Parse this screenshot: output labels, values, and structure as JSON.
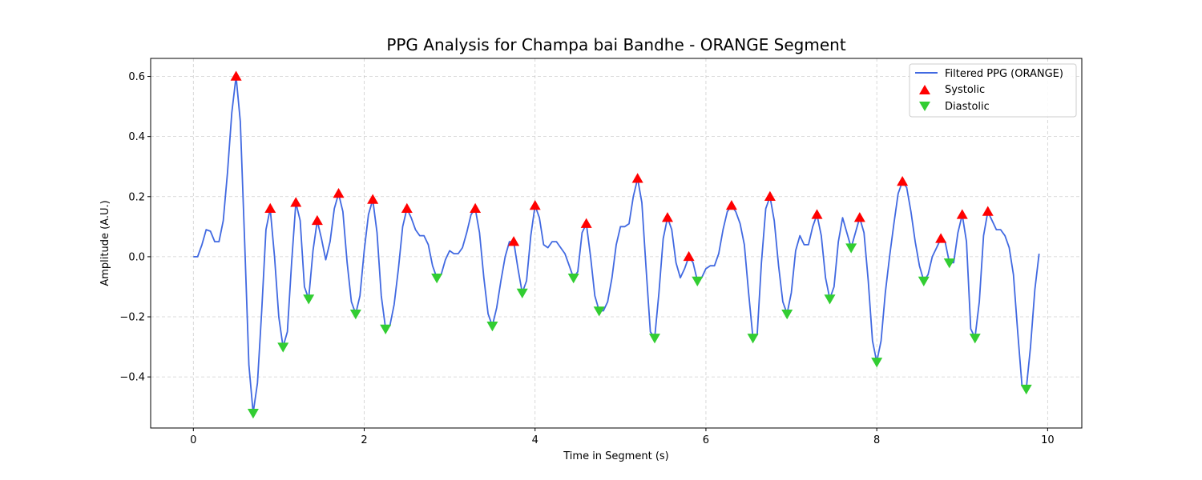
{
  "chart_data": {
    "type": "line",
    "title": "PPG Analysis for Champa bai Bandhe - ORANGE Segment",
    "xlabel": "Time in Segment (s)",
    "ylabel": "Amplitude (A.U.)",
    "xlim": [
      -0.5,
      10.4
    ],
    "ylim": [
      -0.57,
      0.66
    ],
    "x_ticks": [
      0,
      2,
      4,
      6,
      8,
      10
    ],
    "x_tick_labels": [
      "0",
      "2",
      "4",
      "6",
      "8",
      "10"
    ],
    "y_ticks": [
      -0.4,
      -0.2,
      0.0,
      0.2,
      0.4,
      0.6
    ],
    "y_tick_labels": [
      "−0.4",
      "−0.2",
      "0.0",
      "0.2",
      "0.4",
      "0.6"
    ],
    "grid": true,
    "legend_position": "top-right",
    "colors": {
      "line": "#4169e1",
      "systolic": "#ff0000",
      "diastolic": "#32cd32"
    },
    "series": [
      {
        "name": "Filtered PPG (ORANGE)",
        "style": "line",
        "points": [
          [
            0.0,
            0.0
          ],
          [
            0.05,
            0.0
          ],
          [
            0.1,
            0.04
          ],
          [
            0.15,
            0.09
          ],
          [
            0.2,
            0.085
          ],
          [
            0.25,
            0.05
          ],
          [
            0.3,
            0.05
          ],
          [
            0.35,
            0.12
          ],
          [
            0.4,
            0.28
          ],
          [
            0.45,
            0.48
          ],
          [
            0.5,
            0.6
          ],
          [
            0.55,
            0.45
          ],
          [
            0.6,
            0.05
          ],
          [
            0.65,
            -0.36
          ],
          [
            0.7,
            -0.52
          ],
          [
            0.75,
            -0.42
          ],
          [
            0.8,
            -0.18
          ],
          [
            0.85,
            0.09
          ],
          [
            0.9,
            0.16
          ],
          [
            0.95,
            0.0
          ],
          [
            1.0,
            -0.2
          ],
          [
            1.05,
            -0.3
          ],
          [
            1.1,
            -0.25
          ],
          [
            1.15,
            -0.02
          ],
          [
            1.2,
            0.18
          ],
          [
            1.25,
            0.12
          ],
          [
            1.3,
            -0.1
          ],
          [
            1.35,
            -0.14
          ],
          [
            1.4,
            0.02
          ],
          [
            1.45,
            0.12
          ],
          [
            1.5,
            0.06
          ],
          [
            1.55,
            -0.01
          ],
          [
            1.6,
            0.05
          ],
          [
            1.65,
            0.16
          ],
          [
            1.7,
            0.21
          ],
          [
            1.75,
            0.15
          ],
          [
            1.8,
            -0.02
          ],
          [
            1.85,
            -0.15
          ],
          [
            1.9,
            -0.19
          ],
          [
            1.95,
            -0.13
          ],
          [
            2.0,
            0.02
          ],
          [
            2.05,
            0.14
          ],
          [
            2.1,
            0.19
          ],
          [
            2.15,
            0.08
          ],
          [
            2.2,
            -0.13
          ],
          [
            2.25,
            -0.24
          ],
          [
            2.3,
            -0.23
          ],
          [
            2.35,
            -0.16
          ],
          [
            2.4,
            -0.04
          ],
          [
            2.45,
            0.1
          ],
          [
            2.5,
            0.16
          ],
          [
            2.55,
            0.13
          ],
          [
            2.6,
            0.09
          ],
          [
            2.65,
            0.07
          ],
          [
            2.7,
            0.07
          ],
          [
            2.75,
            0.04
          ],
          [
            2.8,
            -0.03
          ],
          [
            2.85,
            -0.07
          ],
          [
            2.9,
            -0.06
          ],
          [
            2.95,
            -0.01
          ],
          [
            3.0,
            0.02
          ],
          [
            3.05,
            0.01
          ],
          [
            3.1,
            0.01
          ],
          [
            3.15,
            0.03
          ],
          [
            3.2,
            0.08
          ],
          [
            3.25,
            0.14
          ],
          [
            3.3,
            0.16
          ],
          [
            3.35,
            0.08
          ],
          [
            3.4,
            -0.07
          ],
          [
            3.45,
            -0.19
          ],
          [
            3.5,
            -0.23
          ],
          [
            3.55,
            -0.17
          ],
          [
            3.6,
            -0.08
          ],
          [
            3.65,
            0.0
          ],
          [
            3.7,
            0.05
          ],
          [
            3.75,
            0.05
          ],
          [
            3.8,
            -0.04
          ],
          [
            3.85,
            -0.12
          ],
          [
            3.9,
            -0.08
          ],
          [
            3.95,
            0.07
          ],
          [
            4.0,
            0.17
          ],
          [
            4.05,
            0.13
          ],
          [
            4.1,
            0.04
          ],
          [
            4.15,
            0.03
          ],
          [
            4.2,
            0.05
          ],
          [
            4.25,
            0.05
          ],
          [
            4.3,
            0.03
          ],
          [
            4.35,
            0.01
          ],
          [
            4.4,
            -0.03
          ],
          [
            4.45,
            -0.07
          ],
          [
            4.5,
            -0.05
          ],
          [
            4.55,
            0.08
          ],
          [
            4.6,
            0.11
          ],
          [
            4.65,
            0.0
          ],
          [
            4.7,
            -0.13
          ],
          [
            4.75,
            -0.18
          ],
          [
            4.8,
            -0.18
          ],
          [
            4.85,
            -0.15
          ],
          [
            4.9,
            -0.07
          ],
          [
            4.95,
            0.04
          ],
          [
            5.0,
            0.1
          ],
          [
            5.05,
            0.1
          ],
          [
            5.1,
            0.11
          ],
          [
            5.15,
            0.2
          ],
          [
            5.2,
            0.26
          ],
          [
            5.25,
            0.18
          ],
          [
            5.3,
            -0.04
          ],
          [
            5.35,
            -0.25
          ],
          [
            5.4,
            -0.27
          ],
          [
            5.45,
            -0.12
          ],
          [
            5.5,
            0.06
          ],
          [
            5.55,
            0.13
          ],
          [
            5.6,
            0.09
          ],
          [
            5.65,
            -0.02
          ],
          [
            5.7,
            -0.07
          ],
          [
            5.75,
            -0.04
          ],
          [
            5.8,
            0.0
          ],
          [
            5.85,
            -0.02
          ],
          [
            5.9,
            -0.08
          ],
          [
            5.95,
            -0.07
          ],
          [
            6.0,
            -0.04
          ],
          [
            6.05,
            -0.03
          ],
          [
            6.1,
            -0.03
          ],
          [
            6.15,
            0.01
          ],
          [
            6.2,
            0.09
          ],
          [
            6.25,
            0.15
          ],
          [
            6.3,
            0.17
          ],
          [
            6.35,
            0.15
          ],
          [
            6.4,
            0.11
          ],
          [
            6.45,
            0.04
          ],
          [
            6.5,
            -0.12
          ],
          [
            6.55,
            -0.27
          ],
          [
            6.6,
            -0.26
          ],
          [
            6.65,
            -0.02
          ],
          [
            6.7,
            0.16
          ],
          [
            6.75,
            0.2
          ],
          [
            6.8,
            0.12
          ],
          [
            6.85,
            -0.03
          ],
          [
            6.9,
            -0.15
          ],
          [
            6.95,
            -0.19
          ],
          [
            7.0,
            -0.12
          ],
          [
            7.05,
            0.02
          ],
          [
            7.1,
            0.07
          ],
          [
            7.15,
            0.04
          ],
          [
            7.2,
            0.04
          ],
          [
            7.25,
            0.1
          ],
          [
            7.3,
            0.14
          ],
          [
            7.35,
            0.07
          ],
          [
            7.4,
            -0.07
          ],
          [
            7.45,
            -0.14
          ],
          [
            7.5,
            -0.1
          ],
          [
            7.55,
            0.05
          ],
          [
            7.6,
            0.13
          ],
          [
            7.65,
            0.08
          ],
          [
            7.7,
            0.03
          ],
          [
            7.75,
            0.08
          ],
          [
            7.8,
            0.13
          ],
          [
            7.85,
            0.08
          ],
          [
            7.9,
            -0.08
          ],
          [
            7.95,
            -0.28
          ],
          [
            8.0,
            -0.35
          ],
          [
            8.05,
            -0.28
          ],
          [
            8.1,
            -0.12
          ],
          [
            8.15,
            0.0
          ],
          [
            8.2,
            0.11
          ],
          [
            8.25,
            0.21
          ],
          [
            8.3,
            0.25
          ],
          [
            8.35,
            0.23
          ],
          [
            8.4,
            0.15
          ],
          [
            8.45,
            0.05
          ],
          [
            8.5,
            -0.03
          ],
          [
            8.55,
            -0.08
          ],
          [
            8.6,
            -0.06
          ],
          [
            8.65,
            0.0
          ],
          [
            8.7,
            0.03
          ],
          [
            8.75,
            0.06
          ],
          [
            8.8,
            0.05
          ],
          [
            8.85,
            -0.02
          ],
          [
            8.9,
            -0.02
          ],
          [
            8.95,
            0.08
          ],
          [
            9.0,
            0.14
          ],
          [
            9.05,
            0.05
          ],
          [
            9.1,
            -0.24
          ],
          [
            9.15,
            -0.27
          ],
          [
            9.2,
            -0.15
          ],
          [
            9.25,
            0.07
          ],
          [
            9.3,
            0.15
          ],
          [
            9.35,
            0.12
          ],
          [
            9.4,
            0.09
          ],
          [
            9.45,
            0.09
          ],
          [
            9.5,
            0.07
          ],
          [
            9.55,
            0.03
          ],
          [
            9.6,
            -0.06
          ],
          [
            9.65,
            -0.25
          ],
          [
            9.7,
            -0.43
          ],
          [
            9.75,
            -0.44
          ],
          [
            9.8,
            -0.3
          ],
          [
            9.85,
            -0.11
          ],
          [
            9.9,
            0.01
          ]
        ]
      },
      {
        "name": "Systolic",
        "style": "marker-up",
        "points": [
          [
            0.5,
            0.6
          ],
          [
            0.9,
            0.16
          ],
          [
            1.2,
            0.18
          ],
          [
            1.45,
            0.12
          ],
          [
            1.7,
            0.21
          ],
          [
            2.1,
            0.19
          ],
          [
            2.5,
            0.16
          ],
          [
            3.3,
            0.16
          ],
          [
            3.75,
            0.05
          ],
          [
            4.0,
            0.17
          ],
          [
            4.6,
            0.11
          ],
          [
            5.2,
            0.26
          ],
          [
            5.55,
            0.13
          ],
          [
            5.8,
            0.0
          ],
          [
            6.3,
            0.17
          ],
          [
            6.75,
            0.2
          ],
          [
            7.3,
            0.14
          ],
          [
            7.8,
            0.13
          ],
          [
            8.3,
            0.25
          ],
          [
            8.75,
            0.06
          ],
          [
            9.0,
            0.14
          ],
          [
            9.3,
            0.15
          ]
        ]
      },
      {
        "name": "Diastolic",
        "style": "marker-down",
        "points": [
          [
            0.7,
            -0.52
          ],
          [
            1.05,
            -0.3
          ],
          [
            1.35,
            -0.14
          ],
          [
            1.9,
            -0.19
          ],
          [
            2.25,
            -0.24
          ],
          [
            2.85,
            -0.07
          ],
          [
            3.5,
            -0.23
          ],
          [
            3.85,
            -0.12
          ],
          [
            4.45,
            -0.07
          ],
          [
            4.75,
            -0.18
          ],
          [
            5.4,
            -0.27
          ],
          [
            5.9,
            -0.08
          ],
          [
            6.55,
            -0.27
          ],
          [
            6.95,
            -0.19
          ],
          [
            7.45,
            -0.14
          ],
          [
            7.7,
            0.03
          ],
          [
            8.0,
            -0.35
          ],
          [
            8.55,
            -0.08
          ],
          [
            8.85,
            -0.02
          ],
          [
            9.15,
            -0.27
          ],
          [
            9.75,
            -0.44
          ]
        ]
      }
    ]
  }
}
